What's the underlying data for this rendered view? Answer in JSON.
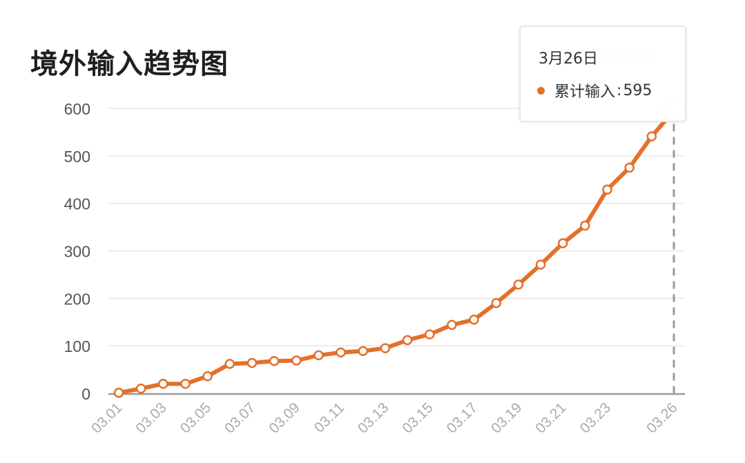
{
  "title": "境外输入趋势图",
  "tooltip": {
    "date": "3月26日",
    "series_label": "累计输入",
    "separator": ":",
    "value": "595"
  },
  "legend": {
    "label": "累计输入"
  },
  "colors": {
    "line": "#e4702b",
    "grid": "#ececec",
    "axis": "#999999",
    "text": "#555555"
  },
  "chart_data": {
    "type": "line",
    "title": "境外输入趋势图",
    "xlabel": "",
    "ylabel": "",
    "ylim": [
      0,
      600
    ],
    "yticks": [
      0,
      100,
      200,
      300,
      400,
      500,
      600
    ],
    "xtick_labels": [
      "03.01",
      "03.03",
      "03.05",
      "03.07",
      "03.09",
      "03.11",
      "03.13",
      "03.15",
      "03.17",
      "03.19",
      "03.21",
      "03.23",
      "03.26"
    ],
    "grid": true,
    "legend_position": "top-right",
    "x": [
      "03.01",
      "03.02",
      "03.03",
      "03.04",
      "03.05",
      "03.06",
      "03.07",
      "03.08",
      "03.09",
      "03.10",
      "03.11",
      "03.12",
      "03.13",
      "03.14",
      "03.15",
      "03.16",
      "03.17",
      "03.18",
      "03.19",
      "03.20",
      "03.21",
      "03.22",
      "03.23",
      "03.24",
      "03.25",
      "03.26"
    ],
    "series": [
      {
        "name": "累计输入",
        "values": [
          1,
          10,
          20,
          20,
          36,
          62,
          64,
          68,
          69,
          80,
          86,
          89,
          95,
          112,
          124,
          144,
          155,
          190,
          229,
          271,
          316,
          353,
          429,
          475,
          541,
          595
        ]
      }
    ]
  }
}
